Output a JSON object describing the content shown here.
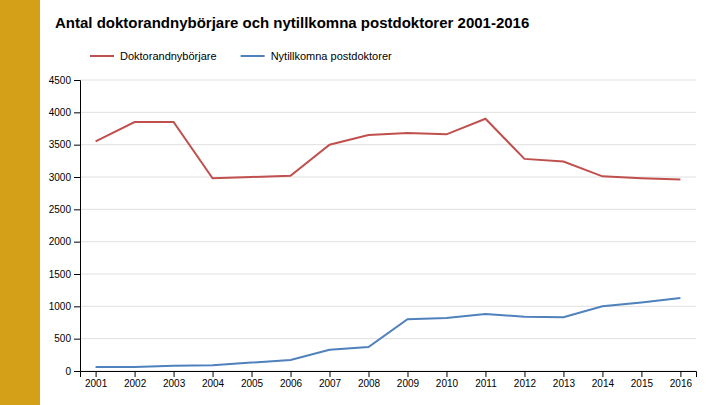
{
  "chart_data": {
    "type": "line",
    "title": "Antal doktorandnybörjare och nytillkomna postdoktorer 2001-2016",
    "x": [
      2001,
      2002,
      2003,
      2004,
      2005,
      2006,
      2007,
      2008,
      2009,
      2010,
      2011,
      2012,
      2013,
      2014,
      2015,
      2016
    ],
    "series": [
      {
        "name": "Doktorandnybörjare",
        "color": "#c0504d",
        "values": [
          3550,
          3850,
          3850,
          2980,
          3000,
          3020,
          3500,
          3650,
          3680,
          3660,
          3900,
          3280,
          3240,
          3010,
          2980,
          2960
        ]
      },
      {
        "name": "Nytillkomna postdoktorer",
        "color": "#4f81bd",
        "values": [
          60,
          60,
          80,
          90,
          130,
          170,
          330,
          370,
          800,
          820,
          880,
          840,
          830,
          1000,
          1060,
          1130
        ]
      }
    ],
    "xlim": [
      2000.6,
      2016.4
    ],
    "xticks": [
      2001,
      2002,
      2003,
      2004,
      2005,
      2006,
      2007,
      2008,
      2009,
      2010,
      2011,
      2012,
      2013,
      2014,
      2015,
      2016
    ],
    "ylim": [
      0,
      4500
    ],
    "yticks": [
      0,
      500,
      1000,
      1500,
      2000,
      2500,
      3000,
      3500,
      4000,
      4500
    ],
    "grid": true,
    "legend": "top"
  }
}
